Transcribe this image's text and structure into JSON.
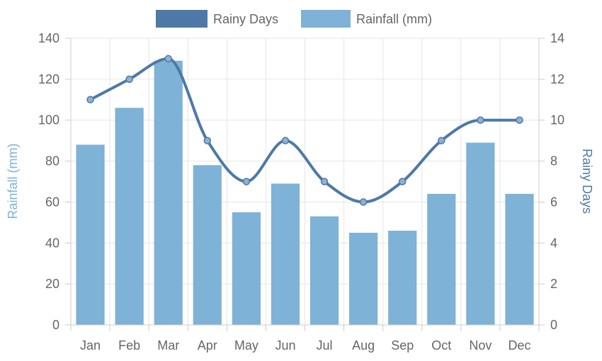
{
  "chart_data": {
    "type": "bar",
    "categories": [
      "Jan",
      "Feb",
      "Mar",
      "Apr",
      "May",
      "Jun",
      "Jul",
      "Aug",
      "Sep",
      "Oct",
      "Nov",
      "Dec"
    ],
    "series": [
      {
        "name": "Rainy Days",
        "type": "line",
        "axis": "right",
        "color": "#4E79A7",
        "values": [
          11,
          12,
          13,
          9,
          7,
          9,
          7,
          6,
          7,
          9,
          10,
          10
        ]
      },
      {
        "name": "Rainfall (mm)",
        "type": "bar",
        "axis": "left",
        "color": "#7EB2D6",
        "values": [
          88,
          106,
          129,
          78,
          55,
          69,
          53,
          45,
          46,
          64,
          89,
          64
        ]
      }
    ],
    "ylabel_left": "Rainfall (mm)",
    "ylabel_right": "Rainy Days",
    "ylim_left": [
      0,
      140
    ],
    "ylim_right": [
      0,
      14
    ],
    "yticks_left": [
      "0",
      "20",
      "40",
      "60",
      "80",
      "100",
      "120",
      "140"
    ],
    "yticks_right": [
      "0",
      "2",
      "4",
      "6",
      "8",
      "10",
      "12",
      "14"
    ],
    "grid": true,
    "legend_position": "top-center",
    "line_smooth": true
  }
}
